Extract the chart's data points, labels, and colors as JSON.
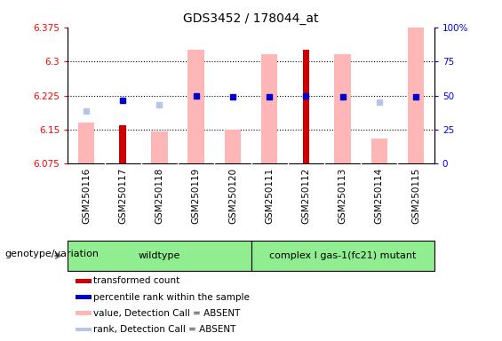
{
  "title": "GDS3452 / 178044_at",
  "samples": [
    "GSM250116",
    "GSM250117",
    "GSM250118",
    "GSM250119",
    "GSM250120",
    "GSM250111",
    "GSM250112",
    "GSM250113",
    "GSM250114",
    "GSM250115"
  ],
  "red_values": [
    null,
    6.16,
    null,
    null,
    null,
    null,
    6.325,
    null,
    null,
    null
  ],
  "pink_values": [
    6.165,
    null,
    6.145,
    6.325,
    6.15,
    6.315,
    null,
    6.315,
    6.13,
    6.375
  ],
  "blue_values": [
    null,
    6.215,
    null,
    6.225,
    6.222,
    6.222,
    6.225,
    6.222,
    null,
    6.222
  ],
  "lightblue_values": [
    6.19,
    null,
    6.205,
    null,
    null,
    null,
    null,
    null,
    6.21,
    null
  ],
  "ylim_left": [
    6.075,
    6.375
  ],
  "ylim_right": [
    0,
    100
  ],
  "yticks_left": [
    6.075,
    6.15,
    6.225,
    6.3,
    6.375
  ],
  "yticks_right": [
    0,
    25,
    50,
    75,
    100
  ],
  "ytick_labels_left": [
    "6.075",
    "6.15",
    "6.225",
    "6.3",
    "6.375"
  ],
  "ytick_labels_right": [
    "0",
    "25",
    "50",
    "75",
    "100%"
  ],
  "hlines": [
    6.3,
    6.225,
    6.15
  ],
  "wildtype_label": "wildtype",
  "mutant_label": "complex I gas-1(fc21) mutant",
  "genotype_label": "genotype/variation",
  "legend_items": [
    {
      "label": "transformed count",
      "color": "#cc0000"
    },
    {
      "label": "percentile rank within the sample",
      "color": "#0000cc"
    },
    {
      "label": "value, Detection Call = ABSENT",
      "color": "#ffb6b6"
    },
    {
      "label": "rank, Detection Call = ABSENT",
      "color": "#b8c4e8"
    }
  ],
  "red_color": "#cc0000",
  "pink_color": "#ffb6b6",
  "blue_color": "#0000cc",
  "lightblue_color": "#b8c4e8",
  "gray_bg": "#d3d3d3",
  "green_bg": "#90ee90",
  "title_fontsize": 10,
  "tick_fontsize": 7.5,
  "label_fontsize": 8
}
